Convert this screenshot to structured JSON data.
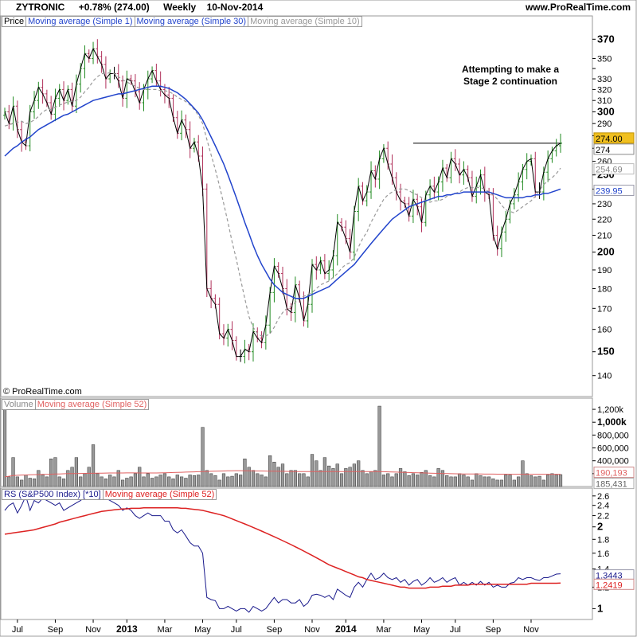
{
  "header": {
    "symbol": "ZYTRONIC",
    "change": "+0.78% (274.00)",
    "period": "Weekly",
    "date": "10-Nov-2014",
    "site": "www.ProRealTime.com",
    "copyright": "© ProRealTime.com"
  },
  "colors": {
    "up": "#228B22",
    "down": "#B0305A",
    "neutral": "#000000",
    "ma30": "#2244CC",
    "ma10": "#999999",
    "vol_ma": "#E06060",
    "rs_line": "#1A1A8C",
    "rs_ma": "#DD2222",
    "price_label_bg": "#F0C020"
  },
  "chart_data": [
    {
      "type": "candlestick",
      "legend": [
        "Price",
        "Moving average (Simple 1)",
        "Moving average (Simple 30)",
        "Moving average (Simple 10)"
      ],
      "annotation": "Attempting to make a Stage 2 continuation",
      "resistance_level": 274,
      "last_values": {
        "price": "274.00",
        "price_axis": "274",
        "ma10": "254.69",
        "ma30": "239.95"
      },
      "y_ticks": [
        140,
        150,
        160,
        170,
        180,
        190,
        200,
        210,
        220,
        230,
        240,
        250,
        260,
        270,
        280,
        290,
        300,
        310,
        320,
        330,
        340,
        350,
        370
      ],
      "y_tick_labels": [
        "140",
        "150",
        "160",
        "170",
        "180",
        "190",
        "200",
        "210",
        "220",
        "230",
        "",
        "250",
        "260",
        "",
        "",
        "290",
        "300",
        "310",
        "320",
        "330",
        "",
        "350",
        "370"
      ],
      "ylim": [
        133,
        378
      ],
      "x_ticks": [
        {
          "label": "Jul",
          "week": 3
        },
        {
          "label": "Sep",
          "week": 12
        },
        {
          "label": "Nov",
          "week": 21
        },
        {
          "label": "2013",
          "week": 29
        },
        {
          "label": "Mar",
          "week": 38
        },
        {
          "label": "May",
          "week": 47
        },
        {
          "label": "Jul",
          "week": 55
        },
        {
          "label": "Sep",
          "week": 64
        },
        {
          "label": "Nov",
          "week": 73
        },
        {
          "label": "2014",
          "week": 81
        },
        {
          "label": "Mar",
          "week": 90
        },
        {
          "label": "May",
          "week": 99
        },
        {
          "label": "Jul",
          "week": 107
        },
        {
          "label": "Sep",
          "week": 116
        },
        {
          "label": "Nov",
          "week": 125
        }
      ],
      "close": [
        300,
        290,
        305,
        285,
        275,
        272,
        300,
        310,
        322,
        316,
        308,
        298,
        312,
        320,
        310,
        320,
        305,
        325,
        340,
        355,
        350,
        360,
        352,
        344,
        330,
        335,
        335,
        328,
        312,
        330,
        328,
        318,
        308,
        320,
        330,
        338,
        328,
        320,
        315,
        312,
        295,
        282,
        293,
        285,
        270,
        275,
        264,
        240,
        180,
        175,
        172,
        158,
        156,
        160,
        155,
        148,
        148,
        151,
        150,
        159,
        156,
        154,
        162,
        178,
        192,
        188,
        180,
        170,
        168,
        182,
        175,
        164,
        172,
        193,
        190,
        195,
        188,
        190,
        198,
        218,
        215,
        208,
        200,
        225,
        242,
        232,
        238,
        253,
        247,
        262,
        270,
        258,
        248,
        238,
        232,
        230,
        222,
        233,
        228,
        218,
        236,
        242,
        238,
        245,
        255,
        248,
        262,
        258,
        250,
        254,
        248,
        235,
        242,
        250,
        238,
        236,
        210,
        202,
        212,
        220,
        230,
        236,
        245,
        254,
        260,
        262,
        238,
        238,
        252,
        262,
        268,
        272,
        274
      ],
      "ma10": [
        288,
        289,
        290,
        291,
        292,
        290,
        291,
        293,
        296,
        300,
        302,
        302,
        304,
        306,
        307,
        309,
        309,
        310,
        313,
        318,
        322,
        328,
        332,
        335,
        335,
        336,
        335,
        332,
        329,
        327,
        325,
        323,
        321,
        320,
        320,
        320,
        320,
        319,
        319,
        318,
        316,
        313,
        311,
        309,
        306,
        302,
        297,
        290,
        277,
        265,
        254,
        242,
        230,
        218,
        206,
        196,
        185,
        175,
        166,
        161,
        158,
        157,
        157,
        158,
        161,
        165,
        168,
        170,
        171,
        173,
        175,
        176,
        177,
        178,
        180,
        182,
        183,
        184,
        186,
        188,
        191,
        193,
        194,
        197,
        203,
        208,
        212,
        218,
        223,
        228,
        233,
        236,
        238,
        240,
        240,
        240,
        239,
        237,
        236,
        234,
        232,
        231,
        232,
        232,
        233,
        235,
        236,
        237,
        238,
        240,
        241,
        241,
        241,
        241,
        240,
        238,
        236,
        233,
        229,
        226,
        225,
        224,
        226,
        228,
        230,
        232,
        235,
        239,
        243,
        246,
        248,
        251,
        255
      ],
      "ma30": [
        264,
        267,
        270,
        272,
        275,
        277,
        279,
        282,
        285,
        287,
        289,
        291,
        293,
        295,
        297,
        298,
        300,
        302,
        304,
        306,
        308,
        310,
        311,
        312,
        313,
        314,
        315,
        316,
        316,
        317,
        318,
        319,
        320,
        321,
        322,
        323,
        323,
        323,
        322,
        321,
        319,
        317,
        314,
        311,
        307,
        303,
        299,
        293,
        286,
        279,
        272,
        265,
        258,
        250,
        242,
        234,
        226,
        218,
        211,
        204,
        198,
        193,
        189,
        185,
        182,
        180,
        178,
        177,
        176,
        175,
        175,
        175,
        176,
        177,
        178,
        179,
        180,
        181,
        183,
        185,
        187,
        189,
        191,
        193,
        196,
        199,
        202,
        205,
        208,
        211,
        214,
        217,
        220,
        222,
        224,
        226,
        228,
        229,
        230,
        231,
        232,
        233,
        234,
        235,
        235,
        236,
        236,
        237,
        237,
        238,
        238,
        238,
        238,
        238,
        238,
        238,
        237,
        236,
        235,
        234,
        234,
        234,
        234,
        234,
        235,
        235,
        236,
        236,
        237,
        237,
        238,
        239,
        240
      ]
    },
    {
      "type": "bar",
      "legend": [
        "Volume",
        "Moving average (Simple 52)"
      ],
      "last_values": {
        "ma52": "190,193",
        "volume": "185,431"
      },
      "y_ticks": [
        200000,
        400000,
        600000,
        800000,
        1000000,
        1200000
      ],
      "y_tick_labels": [
        "200,000",
        "400,000",
        "600,000",
        "800,000",
        "1,000k",
        "1,200k"
      ],
      "ylim": [
        0,
        1300000
      ],
      "values": [
        1200000,
        150000,
        450000,
        150000,
        100000,
        180000,
        130000,
        120000,
        250000,
        180000,
        150000,
        430000,
        450000,
        150000,
        120000,
        250000,
        300000,
        450000,
        150000,
        200000,
        300000,
        650000,
        200000,
        150000,
        120000,
        180000,
        150000,
        250000,
        100000,
        130000,
        150000,
        200000,
        300000,
        150000,
        200000,
        130000,
        150000,
        180000,
        200000,
        150000,
        120000,
        180000,
        150000,
        130000,
        180000,
        170000,
        180000,
        920000,
        250000,
        200000,
        170000,
        100000,
        200000,
        150000,
        160000,
        200000,
        180000,
        430000,
        300000,
        250000,
        200000,
        180000,
        150000,
        480000,
        380000,
        300000,
        350000,
        200000,
        250000,
        250000,
        200000,
        200000,
        150000,
        500000,
        400000,
        250000,
        450000,
        320000,
        280000,
        350000,
        200000,
        280000,
        300000,
        350000,
        400000,
        250000,
        200000,
        230000,
        250000,
        1250000,
        180000,
        200000,
        150000,
        200000,
        280000,
        230000,
        170000,
        200000,
        180000,
        220000,
        250000,
        170000,
        150000,
        280000,
        250000,
        170000,
        150000,
        150000,
        200000,
        180000,
        150000,
        100000,
        200000,
        170000,
        150000,
        150000,
        120000,
        100000,
        100000,
        180000,
        180000,
        100000,
        150000,
        400000,
        200000,
        170000,
        150000,
        160000,
        100000,
        180000,
        200000,
        180000,
        185431
      ],
      "ma52": [
        150000,
        160000,
        170000,
        175000,
        178000,
        180000,
        182000,
        184000,
        186000,
        188000,
        190000,
        192000,
        194000,
        196000,
        198000,
        200000,
        201000,
        202000,
        203000,
        204000,
        205000,
        206000,
        207000,
        208000,
        209000,
        210000,
        210000,
        210000,
        211000,
        212000,
        212000,
        212000,
        211000,
        210000,
        210000,
        210000,
        210000,
        212000,
        214000,
        216000,
        218000,
        220000,
        222000,
        224000,
        226000,
        228000,
        230000,
        232000,
        234000,
        236000,
        238000,
        240000,
        242000,
        244000,
        245000,
        246000,
        246000,
        245000,
        244000,
        243000,
        242000,
        241000,
        240000,
        239000,
        238000,
        237000,
        236000,
        235000,
        234000,
        233000,
        232000,
        232000,
        232000,
        232000,
        232000,
        232000,
        232000,
        232000,
        232000,
        232000,
        232000,
        232000,
        232000,
        232000,
        232000,
        232000,
        232000,
        232000,
        232000,
        232000,
        230000,
        228000,
        226000,
        224000,
        222000,
        220000,
        218000,
        216000,
        214000,
        212000,
        210000,
        208000,
        206000,
        204000,
        202000,
        200000,
        199000,
        198000,
        197000,
        196000,
        195000,
        195000,
        194000,
        194000,
        193000,
        193000,
        193000,
        192000,
        192000,
        192000,
        191000,
        191000,
        191000,
        191000,
        190500,
        190500,
        190500,
        190300,
        190300,
        190200,
        190200,
        190193,
        190193
      ]
    },
    {
      "type": "line",
      "legend": [
        "RS (S&P500 Index) [*10]",
        "Moving average (Simple 52)"
      ],
      "scale": "log",
      "last_values": {
        "rs": "1.3443",
        "ma52": "1.2419"
      },
      "y_ticks": [
        1,
        1.2,
        1.4,
        1.6,
        1.8,
        2,
        2.2,
        2.4,
        2.6
      ],
      "y_tick_labels": [
        "1",
        "1.2",
        "1.4",
        "1.6",
        "1.8",
        "2",
        "2.2",
        "2.4",
        "2.6"
      ],
      "ylim": [
        0.95,
        2.65
      ],
      "rs": [
        2.3,
        2.4,
        2.45,
        2.25,
        2.4,
        2.6,
        2.3,
        2.5,
        2.45,
        2.55,
        2.5,
        2.45,
        2.4,
        2.45,
        2.3,
        2.35,
        2.4,
        2.45,
        2.5,
        2.58,
        2.62,
        2.6,
        2.7,
        2.6,
        2.55,
        2.5,
        2.45,
        2.4,
        2.3,
        2.35,
        2.3,
        2.2,
        2.15,
        2.2,
        2.25,
        2.2,
        2.2,
        2.2,
        2.1,
        2.1,
        1.95,
        1.9,
        1.95,
        1.85,
        1.75,
        1.7,
        1.7,
        1.6,
        1.1,
        1.08,
        1.07,
        1.0,
        1.0,
        1.02,
        1.0,
        0.98,
        1.0,
        1.0,
        0.97,
        1.02,
        1.0,
        0.98,
        1.0,
        1.05,
        1.1,
        1.05,
        1.08,
        1.08,
        1.05,
        1.05,
        1.08,
        1.02,
        1.05,
        1.12,
        1.13,
        1.12,
        1.1,
        1.12,
        1.08,
        1.18,
        1.15,
        1.12,
        1.1,
        1.2,
        1.25,
        1.2,
        1.28,
        1.35,
        1.28,
        1.3,
        1.35,
        1.3,
        1.28,
        1.3,
        1.25,
        1.28,
        1.22,
        1.26,
        1.28,
        1.22,
        1.25,
        1.3,
        1.25,
        1.27,
        1.3,
        1.25,
        1.28,
        1.3,
        1.22,
        1.25,
        1.22,
        1.25,
        1.22,
        1.26,
        1.22,
        1.25,
        1.2,
        1.22,
        1.2,
        1.2,
        1.24,
        1.25,
        1.3,
        1.28,
        1.3,
        1.3,
        1.28,
        1.27,
        1.3,
        1.3,
        1.32,
        1.34,
        1.3443
      ],
      "ma52": [
        1.88,
        1.89,
        1.9,
        1.91,
        1.92,
        1.93,
        1.94,
        1.95,
        1.97,
        1.99,
        2.01,
        2.03,
        2.05,
        2.08,
        2.1,
        2.12,
        2.14,
        2.16,
        2.18,
        2.2,
        2.22,
        2.24,
        2.26,
        2.28,
        2.29,
        2.3,
        2.31,
        2.32,
        2.33,
        2.33,
        2.34,
        2.34,
        2.34,
        2.35,
        2.35,
        2.35,
        2.35,
        2.35,
        2.35,
        2.35,
        2.35,
        2.35,
        2.34,
        2.34,
        2.33,
        2.32,
        2.31,
        2.3,
        2.28,
        2.26,
        2.24,
        2.22,
        2.2,
        2.17,
        2.14,
        2.11,
        2.08,
        2.05,
        2.02,
        1.99,
        1.96,
        1.93,
        1.9,
        1.87,
        1.84,
        1.81,
        1.78,
        1.75,
        1.72,
        1.69,
        1.66,
        1.63,
        1.6,
        1.57,
        1.54,
        1.51,
        1.48,
        1.45,
        1.43,
        1.41,
        1.39,
        1.37,
        1.35,
        1.33,
        1.31,
        1.3,
        1.28,
        1.27,
        1.26,
        1.25,
        1.24,
        1.23,
        1.22,
        1.21,
        1.2,
        1.2,
        1.19,
        1.19,
        1.19,
        1.19,
        1.19,
        1.2,
        1.2,
        1.2,
        1.21,
        1.21,
        1.21,
        1.22,
        1.22,
        1.22,
        1.22,
        1.23,
        1.23,
        1.23,
        1.23,
        1.23,
        1.23,
        1.23,
        1.23,
        1.23,
        1.23,
        1.23,
        1.23,
        1.23,
        1.23,
        1.24,
        1.24,
        1.24,
        1.24,
        1.24,
        1.24,
        1.24,
        1.2419
      ]
    }
  ]
}
